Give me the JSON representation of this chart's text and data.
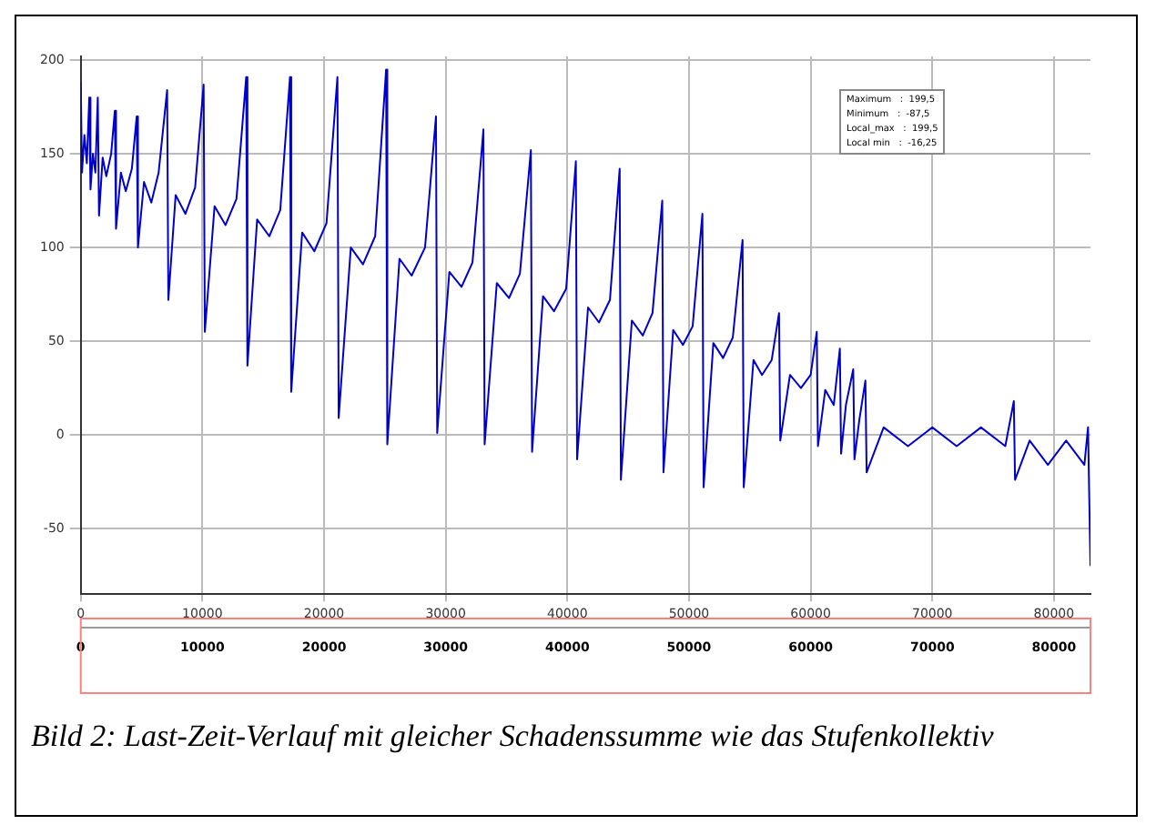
{
  "chart_data": {
    "type": "line",
    "x": [
      0,
      100,
      300,
      500,
      700,
      800,
      1000,
      1200,
      1400,
      1500,
      1800,
      2100,
      2500,
      2800,
      2900,
      3300,
      3700,
      4200,
      4600,
      4700,
      5200,
      5800,
      6400,
      7100,
      7200,
      7800,
      8600,
      9400,
      10100,
      10200,
      11000,
      11900,
      12800,
      13600,
      13700,
      14500,
      15500,
      16400,
      17200,
      17300,
      18200,
      19200,
      20200,
      21100,
      21200,
      22200,
      23200,
      24200,
      25100,
      25200,
      26200,
      27200,
      28300,
      29200,
      29300,
      30300,
      31300,
      32200,
      33100,
      33200,
      34200,
      35200,
      36100,
      37000,
      37100,
      38000,
      38900,
      39900,
      40700,
      40800,
      41700,
      42600,
      43500,
      44300,
      44400,
      45300,
      46200,
      47000,
      47800,
      47900,
      48700,
      49500,
      50300,
      51100,
      51200,
      52000,
      52800,
      53600,
      54400,
      54500,
      55300,
      56000,
      56800,
      57400,
      57500,
      58300,
      59200,
      60000,
      60500,
      60600,
      61200,
      61900,
      62400,
      62500,
      62900,
      63500,
      63600,
      64000,
      64500,
      64600,
      66000,
      68000,
      70000,
      72000,
      74000,
      76000,
      76700,
      76800,
      78000,
      79500,
      81000,
      82500,
      82800,
      83000
    ],
    "series": [
      {
        "color": "#0000cc",
        "values": [
          188,
          140,
          160,
          145,
          180,
          131,
          150,
          140,
          180,
          117,
          148,
          138,
          150,
          173,
          110,
          140,
          130,
          142,
          170,
          100,
          135,
          124,
          140,
          184,
          72,
          128,
          118,
          132,
          187,
          55,
          122,
          112,
          126,
          191,
          37,
          115,
          106,
          120,
          191,
          23,
          108,
          98,
          113,
          191,
          9,
          100,
          91,
          106,
          195,
          -5,
          94,
          85,
          100,
          170,
          1,
          87,
          79,
          92,
          163,
          -5,
          81,
          73,
          86,
          152,
          -9,
          74,
          66,
          78,
          146,
          -13,
          68,
          60,
          72,
          142,
          -24,
          61,
          53,
          65,
          125,
          -20,
          56,
          48,
          58,
          118,
          -28,
          49,
          41,
          52,
          104,
          -28,
          40,
          32,
          40,
          65,
          -3,
          32,
          25,
          32,
          55,
          -6,
          24,
          16,
          46,
          -10,
          16,
          35,
          -13,
          8,
          29,
          -20,
          4,
          -6,
          4,
          -6,
          4,
          -6,
          18,
          -24,
          -3,
          -16,
          -3,
          -16,
          4,
          -70
        ]
      }
    ],
    "xlim": [
      0,
      83000
    ],
    "xticks": [
      0,
      10000,
      20000,
      30000,
      40000,
      50000,
      60000,
      70000,
      80000
    ],
    "x2lim": [
      0,
      83000
    ],
    "x2ticks": [
      0,
      10000,
      20000,
      30000,
      40000,
      50000,
      60000,
      70000,
      80000
    ],
    "ylim": [
      -85,
      202
    ],
    "yticks": [
      -50,
      0,
      50,
      100,
      150,
      200
    ],
    "grid": true,
    "legend": false,
    "marker": "none",
    "line_style": "solid",
    "annotations": [
      "Maximum   :  199,5",
      "Minimum   :  -87,5",
      "Local_max   :  199,5",
      "Local min   :  -16,25",
      "Bild 2: Last-Zeit-Verlauf mit gleicher Schadenssumme wie das Stufenkollektiv"
    ]
  }
}
